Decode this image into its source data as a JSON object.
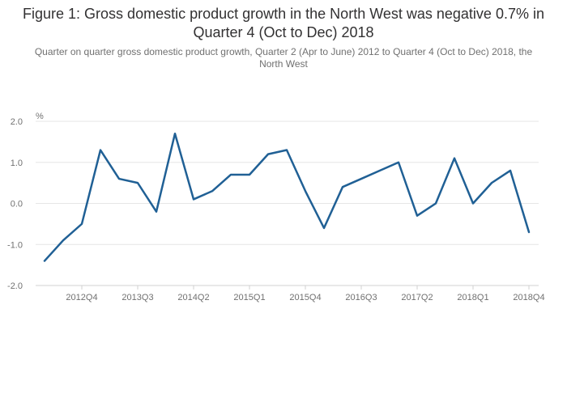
{
  "chart_data": {
    "type": "line",
    "title": "Figure 1: Gross domestic product growth in the North West was negative 0.7% in Quarter 4 (Oct to Dec) 2018",
    "subtitle": "Quarter on quarter gross domestic product growth, Quarter 2 (Apr to June) 2012 to Quarter 4 (Oct to Dec) 2018, the North West",
    "ylabel": "%",
    "xlabel": "",
    "ylim": [
      -2.0,
      2.0
    ],
    "yticks": [
      "2.0",
      "1.0",
      "0.0",
      "-1.0",
      "-2.0"
    ],
    "xtick_labels": [
      "2012Q4",
      "2013Q3",
      "2014Q2",
      "2015Q1",
      "2015Q4",
      "2016Q3",
      "2017Q2",
      "2018Q1",
      "2018Q4"
    ],
    "x": [
      "2012Q2",
      "2012Q3",
      "2012Q4",
      "2013Q1",
      "2013Q2",
      "2013Q3",
      "2013Q4",
      "2014Q1",
      "2014Q2",
      "2014Q3",
      "2014Q4",
      "2015Q1",
      "2015Q2",
      "2015Q3",
      "2015Q4",
      "2016Q1",
      "2016Q2",
      "2016Q3",
      "2016Q4",
      "2017Q1",
      "2017Q2",
      "2017Q3",
      "2017Q4",
      "2018Q1",
      "2018Q2",
      "2018Q3",
      "2018Q4"
    ],
    "series": [
      {
        "color": "#206095",
        "values": [
          -1.4,
          -0.9,
          -0.5,
          1.3,
          0.6,
          0.5,
          -0.2,
          1.7,
          0.1,
          0.3,
          0.7,
          0.7,
          1.2,
          1.3,
          0.3,
          -0.6,
          0.4,
          0.6,
          0.8,
          1.0,
          -0.3,
          0.0,
          1.1,
          0.0,
          0.5,
          0.8,
          -0.7
        ]
      }
    ],
    "grid": true,
    "legend": "none"
  }
}
